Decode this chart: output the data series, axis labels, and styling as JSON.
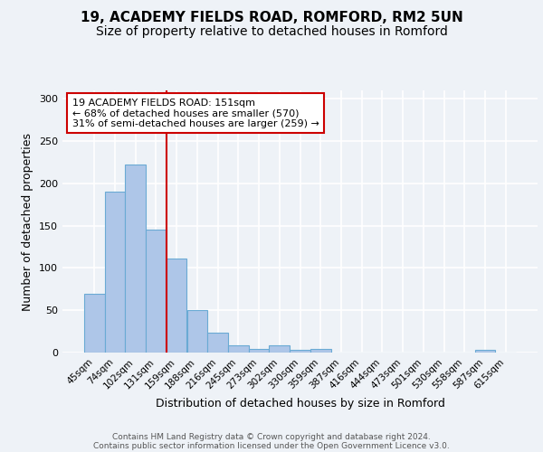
{
  "title1": "19, ACADEMY FIELDS ROAD, ROMFORD, RM2 5UN",
  "title2": "Size of property relative to detached houses in Romford",
  "xlabel": "Distribution of detached houses by size in Romford",
  "ylabel": "Number of detached properties",
  "categories": [
    "45sqm",
    "74sqm",
    "102sqm",
    "131sqm",
    "159sqm",
    "188sqm",
    "216sqm",
    "245sqm",
    "273sqm",
    "302sqm",
    "330sqm",
    "359sqm",
    "387sqm",
    "416sqm",
    "444sqm",
    "473sqm",
    "501sqm",
    "530sqm",
    "558sqm",
    "587sqm",
    "615sqm"
  ],
  "values": [
    70,
    190,
    222,
    145,
    111,
    50,
    23,
    9,
    4,
    9,
    3,
    4,
    0,
    0,
    0,
    0,
    0,
    0,
    0,
    3,
    0
  ],
  "bar_color": "#aec6e8",
  "bar_edge_color": "#6aaad4",
  "red_line_x": 3.5,
  "annotation_line1": "19 ACADEMY FIELDS ROAD: 151sqm",
  "annotation_line2": "← 68% of detached houses are smaller (570)",
  "annotation_line3": "31% of semi-detached houses are larger (259) →",
  "annotation_box_color": "#ffffff",
  "annotation_border_color": "#cc0000",
  "ylim": [
    0,
    310
  ],
  "yticks": [
    0,
    50,
    100,
    150,
    200,
    250,
    300
  ],
  "footer_line1": "Contains HM Land Registry data © Crown copyright and database right 2024.",
  "footer_line2": "Contains public sector information licensed under the Open Government Licence v3.0.",
  "bg_color": "#eef2f7",
  "grid_color": "#ffffff",
  "title1_fontsize": 11,
  "title2_fontsize": 10,
  "ylabel_fontsize": 9,
  "xlabel_fontsize": 9,
  "tick_fontsize": 7.5,
  "footer_fontsize": 6.5,
  "annotation_fontsize": 8
}
